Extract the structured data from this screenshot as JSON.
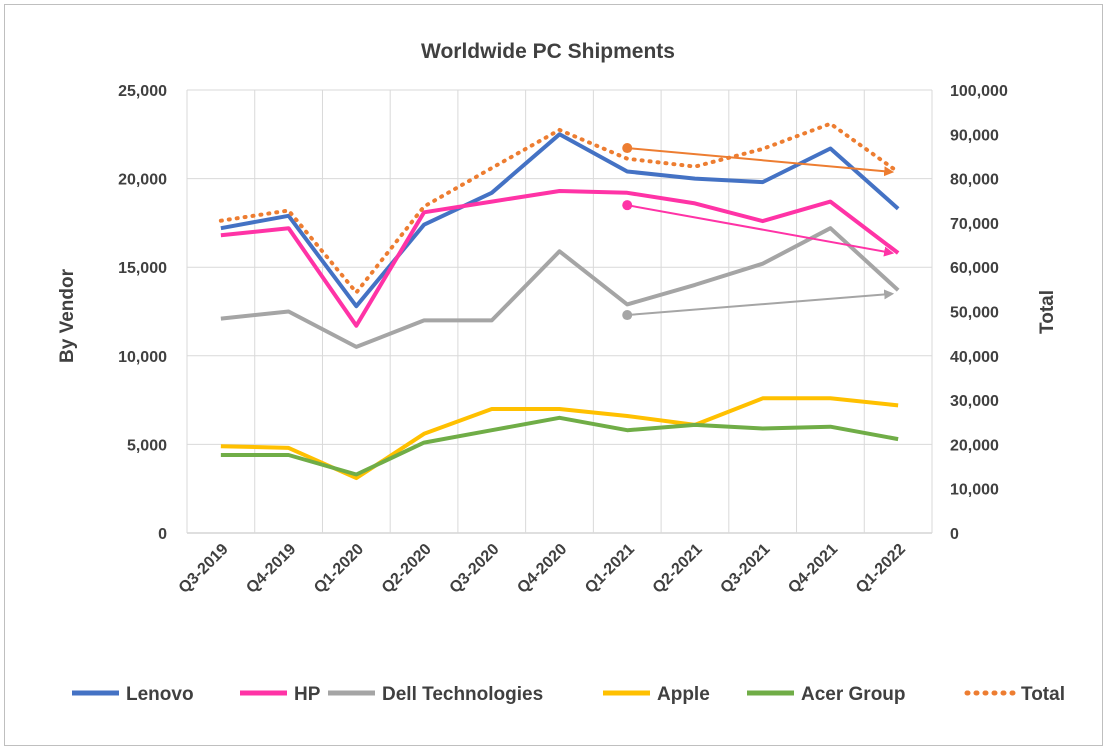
{
  "chart_data": {
    "type": "line",
    "title": "Worldwide PC Shipments",
    "categories": [
      "Q3-2019",
      "Q4-2019",
      "Q1-2020",
      "Q2-2020",
      "Q3-2020",
      "Q4-2020",
      "Q1-2021",
      "Q2-2021",
      "Q3-2021",
      "Q4-2021",
      "Q1-2022"
    ],
    "ylabel": "By Vendor",
    "y2label": "Total",
    "ylim": [
      0,
      25000
    ],
    "y2lim": [
      0,
      100000
    ],
    "yticks": [
      "0",
      "5,000",
      "10,000",
      "15,000",
      "20,000",
      "25,000"
    ],
    "y2ticks": [
      "0",
      "10,000",
      "20,000",
      "30,000",
      "40,000",
      "50,000",
      "60,000",
      "70,000",
      "80,000",
      "90,000",
      "100,000"
    ],
    "grid": true,
    "legend": "bottom",
    "series": [
      {
        "name": "Lenovo",
        "axis": "left",
        "color": "#4472c4",
        "style": "solid",
        "values": [
          17200,
          17900,
          12800,
          17400,
          19200,
          22500,
          20400,
          20000,
          19800,
          21700,
          18300
        ]
      },
      {
        "name": "HP",
        "axis": "left",
        "color": "#ff33a6",
        "style": "solid",
        "values": [
          16800,
          17200,
          11700,
          18100,
          18700,
          19300,
          19200,
          18600,
          17600,
          18700,
          15800
        ]
      },
      {
        "name": "Dell Technologies",
        "axis": "left",
        "color": "#a5a5a5",
        "style": "solid",
        "values": [
          12100,
          12500,
          10500,
          12000,
          12000,
          15900,
          12900,
          14000,
          15200,
          17200,
          13700
        ]
      },
      {
        "name": "Apple",
        "axis": "left",
        "color": "#ffc000",
        "style": "solid",
        "values": [
          4900,
          4800,
          3100,
          5600,
          7000,
          7000,
          6600,
          6100,
          7600,
          7600,
          7200
        ]
      },
      {
        "name": "Acer Group",
        "axis": "left",
        "color": "#70ad47",
        "style": "solid",
        "values": [
          4400,
          4400,
          3300,
          5100,
          5800,
          6500,
          5800,
          6100,
          5900,
          6000,
          5300
        ]
      },
      {
        "name": "Total",
        "axis": "right",
        "color": "#ed7d31",
        "style": "dotted",
        "values": [
          70500,
          72800,
          54300,
          73700,
          82400,
          91000,
          84500,
          82700,
          86700,
          92400,
          81500
        ]
      }
    ],
    "annotations": [
      {
        "type": "arrow",
        "color": "#ed7d31",
        "axis": "right",
        "from": {
          "category": "Q1-2021",
          "value": 86900
        },
        "to": {
          "category": "Q1-2022",
          "value": 81500
        }
      },
      {
        "type": "arrow",
        "color": "#ff33a6",
        "axis": "left",
        "from": {
          "category": "Q1-2021",
          "value": 18500
        },
        "to": {
          "category": "Q1-2022",
          "value": 15800
        }
      },
      {
        "type": "arrow",
        "color": "#a5a5a5",
        "axis": "left",
        "from": {
          "category": "Q1-2021",
          "value": 12300
        },
        "to": {
          "category": "Q1-2022",
          "value": 13500
        }
      }
    ]
  }
}
